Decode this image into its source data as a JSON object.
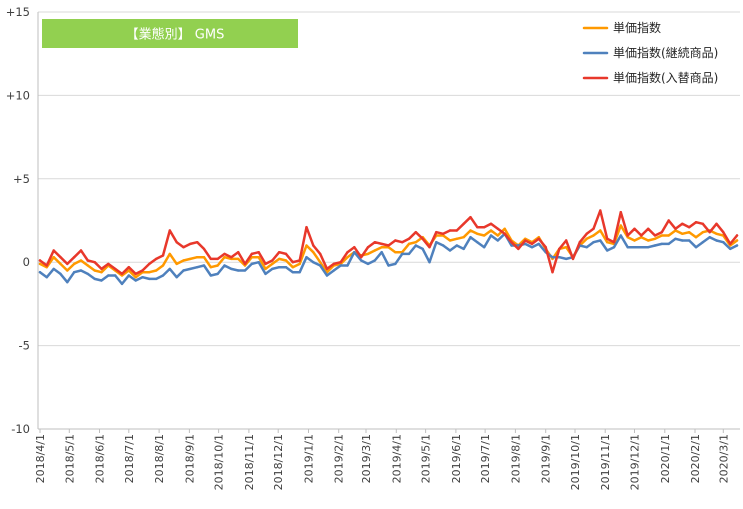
{
  "chart_data": {
    "type": "line",
    "title": "【業態別】 GMS",
    "ylim": [
      -10,
      15
    ],
    "y_ticks": [
      15,
      10,
      5,
      0,
      -5,
      -10
    ],
    "y_tick_labels": [
      "+15",
      "+10",
      "+5",
      "0",
      "-5",
      "-10"
    ],
    "x_tick_labels": [
      "2018/4/1",
      "2018/5/1",
      "2018/6/1",
      "2018/7/1",
      "2018/8/1",
      "2018/9/1",
      "2018/10/1",
      "2018/11/1",
      "2018/12/1",
      "2019/1/1",
      "2019/2/1",
      "2019/3/1",
      "2019/4/1",
      "2019/5/1",
      "2019/6/1",
      "2019/7/1",
      "2019/8/1",
      "2019/9/1",
      "2019/10/1",
      "2019/11/1",
      "2019/12/1",
      "2020/1/1",
      "2020/2/1",
      "2020/3/1"
    ],
    "grid": true,
    "legend_position": "top-right",
    "x": [
      "2018-04-01",
      "2018-04-08",
      "2018-04-15",
      "2018-04-22",
      "2018-04-29",
      "2018-05-06",
      "2018-05-13",
      "2018-05-20",
      "2018-05-27",
      "2018-06-03",
      "2018-06-10",
      "2018-06-17",
      "2018-06-24",
      "2018-07-01",
      "2018-07-08",
      "2018-07-15",
      "2018-07-22",
      "2018-07-29",
      "2018-08-05",
      "2018-08-12",
      "2018-08-19",
      "2018-08-26",
      "2018-09-02",
      "2018-09-09",
      "2018-09-16",
      "2018-09-23",
      "2018-09-30",
      "2018-10-07",
      "2018-10-14",
      "2018-10-21",
      "2018-10-28",
      "2018-11-04",
      "2018-11-11",
      "2018-11-18",
      "2018-11-25",
      "2018-12-02",
      "2018-12-09",
      "2018-12-16",
      "2018-12-23",
      "2018-12-30",
      "2019-01-06",
      "2019-01-13",
      "2019-01-20",
      "2019-01-27",
      "2019-02-03",
      "2019-02-10",
      "2019-02-17",
      "2019-02-24",
      "2019-03-03",
      "2019-03-10",
      "2019-03-17",
      "2019-03-24",
      "2019-03-31",
      "2019-04-07",
      "2019-04-14",
      "2019-04-21",
      "2019-04-28",
      "2019-05-05",
      "2019-05-12",
      "2019-05-19",
      "2019-05-26",
      "2019-06-02",
      "2019-06-09",
      "2019-06-16",
      "2019-06-23",
      "2019-06-30",
      "2019-07-07",
      "2019-07-14",
      "2019-07-21",
      "2019-07-28",
      "2019-08-04",
      "2019-08-11",
      "2019-08-18",
      "2019-08-25",
      "2019-09-01",
      "2019-09-08",
      "2019-09-15",
      "2019-09-22",
      "2019-09-29",
      "2019-10-06",
      "2019-10-13",
      "2019-10-20",
      "2019-10-27",
      "2019-11-03",
      "2019-11-10",
      "2019-11-17",
      "2019-11-24",
      "2019-12-01",
      "2019-12-08",
      "2019-12-15",
      "2019-12-22",
      "2019-12-29",
      "2020-01-05",
      "2020-01-12",
      "2020-01-19",
      "2020-01-26",
      "2020-02-02",
      "2020-02-09",
      "2020-02-16",
      "2020-02-23",
      "2020-03-01",
      "2020-03-08",
      "2020-03-15"
    ],
    "series": [
      {
        "name": "単価指数",
        "color": "#FF9900",
        "values": [
          -0.1,
          -0.3,
          0.3,
          -0.1,
          -0.5,
          -0.1,
          0.1,
          -0.2,
          -0.5,
          -0.6,
          -0.2,
          -0.5,
          -0.8,
          -0.5,
          -0.9,
          -0.6,
          -0.6,
          -0.5,
          -0.2,
          0.5,
          -0.1,
          0.1,
          0.2,
          0.3,
          0.3,
          -0.3,
          -0.2,
          0.3,
          0.2,
          0.2,
          -0.2,
          0.3,
          0.3,
          -0.4,
          -0.1,
          0.2,
          0.1,
          -0.3,
          -0.1,
          1.0,
          0.6,
          0.0,
          -0.6,
          -0.2,
          -0.1,
          0.3,
          0.6,
          0.4,
          0.5,
          0.7,
          0.9,
          0.9,
          0.6,
          0.6,
          1.1,
          1.2,
          1.5,
          1.0,
          1.6,
          1.6,
          1.3,
          1.4,
          1.5,
          1.9,
          1.7,
          1.6,
          1.9,
          1.6,
          2.0,
          1.3,
          1.0,
          1.4,
          1.2,
          1.5,
          0.8,
          0.2,
          0.8,
          0.9,
          0.3,
          1.0,
          1.4,
          1.6,
          1.9,
          1.2,
          1.1,
          2.2,
          1.5,
          1.3,
          1.5,
          1.3,
          1.4,
          1.6,
          1.6,
          1.9,
          1.7,
          1.8,
          1.5,
          1.8,
          1.9,
          1.7,
          1.6,
          1.0,
          1.3
        ]
      },
      {
        "name": "単価指数(継続商品)",
        "color": "#4F81BD",
        "values": [
          -0.6,
          -0.9,
          -0.4,
          -0.7,
          -1.2,
          -0.6,
          -0.5,
          -0.7,
          -1.0,
          -1.1,
          -0.8,
          -0.8,
          -1.3,
          -0.8,
          -1.1,
          -0.9,
          -1.0,
          -1.0,
          -0.8,
          -0.4,
          -0.9,
          -0.5,
          -0.4,
          -0.3,
          -0.2,
          -0.8,
          -0.7,
          -0.2,
          -0.4,
          -0.5,
          -0.5,
          -0.1,
          0.0,
          -0.7,
          -0.4,
          -0.3,
          -0.3,
          -0.6,
          -0.6,
          0.3,
          0.0,
          -0.2,
          -0.8,
          -0.5,
          -0.2,
          -0.2,
          0.6,
          0.1,
          -0.1,
          0.1,
          0.6,
          -0.2,
          -0.1,
          0.5,
          0.5,
          1.0,
          0.8,
          0.0,
          1.2,
          1.0,
          0.7,
          1.0,
          0.8,
          1.5,
          1.2,
          0.9,
          1.6,
          1.3,
          1.7,
          1.0,
          1.0,
          1.1,
          0.9,
          1.1,
          0.6,
          0.3,
          0.3,
          0.2,
          0.3,
          1.0,
          0.9,
          1.2,
          1.3,
          0.7,
          0.9,
          1.6,
          0.9,
          0.9,
          0.9,
          0.9,
          1.0,
          1.1,
          1.1,
          1.4,
          1.3,
          1.3,
          0.9,
          1.2,
          1.5,
          1.3,
          1.2,
          0.8,
          1.0
        ]
      },
      {
        "name": "単価指数(入替商品)",
        "color": "#E8382B",
        "values": [
          0.1,
          -0.2,
          0.7,
          0.3,
          -0.1,
          0.3,
          0.7,
          0.1,
          0.0,
          -0.4,
          -0.1,
          -0.4,
          -0.7,
          -0.3,
          -0.7,
          -0.5,
          -0.1,
          0.2,
          0.4,
          1.9,
          1.2,
          0.9,
          1.1,
          1.2,
          0.8,
          0.2,
          0.2,
          0.5,
          0.3,
          0.6,
          -0.1,
          0.5,
          0.6,
          -0.1,
          0.1,
          0.6,
          0.5,
          0.0,
          0.1,
          2.1,
          1.0,
          0.5,
          -0.4,
          -0.1,
          0.0,
          0.6,
          0.9,
          0.3,
          0.9,
          1.2,
          1.1,
          1.0,
          1.3,
          1.2,
          1.4,
          1.8,
          1.4,
          0.9,
          1.8,
          1.7,
          1.9,
          1.9,
          2.3,
          2.7,
          2.1,
          2.1,
          2.3,
          2.0,
          1.7,
          1.2,
          0.8,
          1.3,
          1.1,
          1.4,
          0.9,
          -0.6,
          0.8,
          1.3,
          0.2,
          1.2,
          1.7,
          2.0,
          3.1,
          1.4,
          1.2,
          3.0,
          1.6,
          2.0,
          1.6,
          2.0,
          1.6,
          1.8,
          2.5,
          2.0,
          2.3,
          2.1,
          2.4,
          2.3,
          1.8,
          2.3,
          1.8,
          1.1,
          1.6
        ]
      }
    ]
  },
  "colors": {
    "title_box": "#92D050",
    "title_text": "#FFFFFF",
    "grid": "#D9D9D9",
    "axis": "#BFBFBF",
    "tick_text": "#404040",
    "legend_text": "#262626"
  }
}
